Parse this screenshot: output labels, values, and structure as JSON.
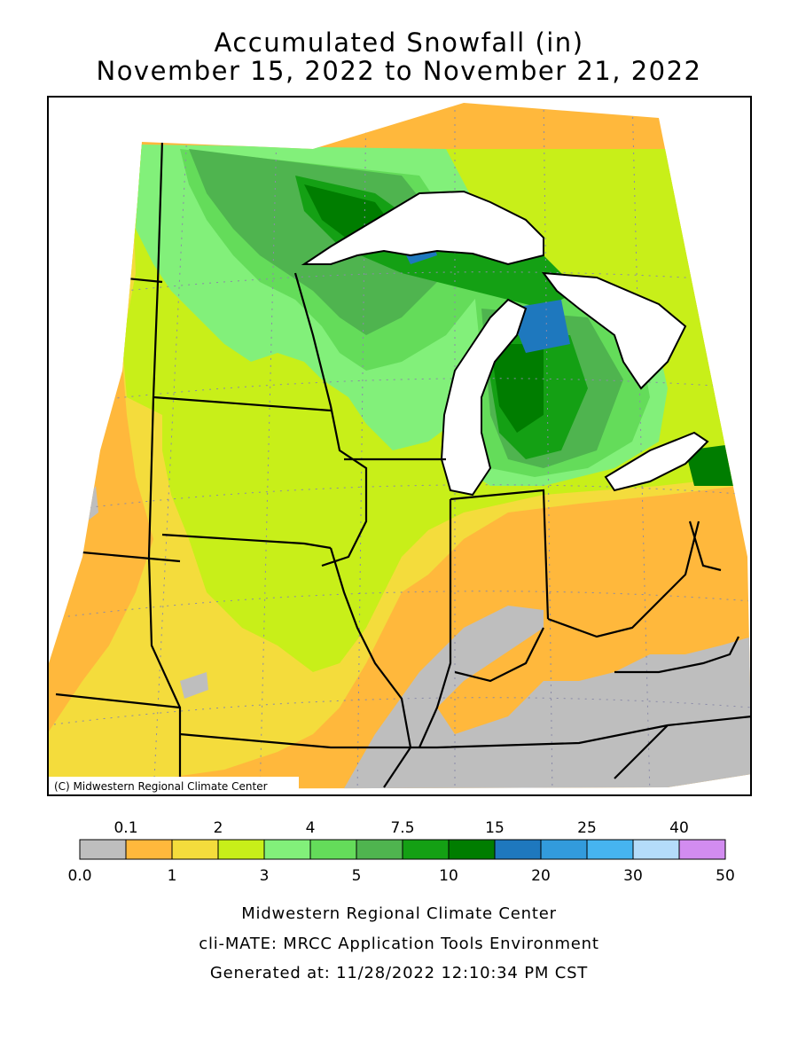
{
  "title": {
    "line1": "Accumulated Snowfall (in)",
    "line2": "November 15, 2022 to November 21, 2022"
  },
  "map": {
    "credit": "(C) Midwestern Regional Climate Center",
    "colors": {
      "gray": "#bebebe",
      "orange": "#ffb83c",
      "yellow": "#f4dc3c",
      "lime": "#c8ef19",
      "light_green": "#82f07a",
      "green1": "#64dc5a",
      "green2": "#4fb44f",
      "green3": "#14a014",
      "dark_green": "#007d00",
      "blue1": "#1e78be",
      "water": "#ffffff",
      "border": "#000000"
    }
  },
  "legend": {
    "top_labels": [
      "0.1",
      "2",
      "4",
      "7.5",
      "15",
      "25",
      "40"
    ],
    "bottom_labels": [
      "0.0",
      "1",
      "3",
      "5",
      "10",
      "20",
      "30",
      "50"
    ],
    "colors": [
      "#bebebe",
      "#ffb83c",
      "#f4dc3c",
      "#c8ef19",
      "#82f07a",
      "#64dc5a",
      "#4fb44f",
      "#14a014",
      "#007d00",
      "#1e78be",
      "#329bdc",
      "#46b4f0",
      "#b4dcfa",
      "#d28cf0"
    ]
  },
  "footer": {
    "line1": "Midwestern Regional Climate Center",
    "line2": "cli-MATE: MRCC Application Tools Environment",
    "line3": "Generated at: 11/28/2022 12:10:34 PM CST"
  }
}
